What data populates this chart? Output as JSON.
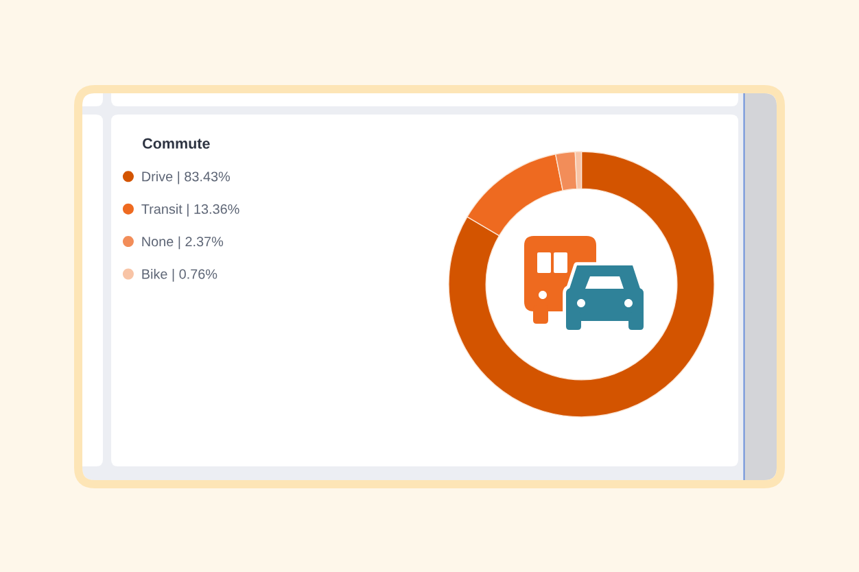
{
  "chart_data": {
    "type": "donut",
    "legend_title": "Commute",
    "categories": [
      "Drive | 83.43%",
      "Transit | 13.36%",
      "None | 2.37%",
      "Bike | 0.76%"
    ],
    "values": [
      83.43,
      13.36,
      2.37,
      0.76
    ],
    "colors": [
      "#d35400",
      "#ee6a20",
      "#f28d59",
      "#f8c4a6"
    ],
    "legend": "left"
  }
}
